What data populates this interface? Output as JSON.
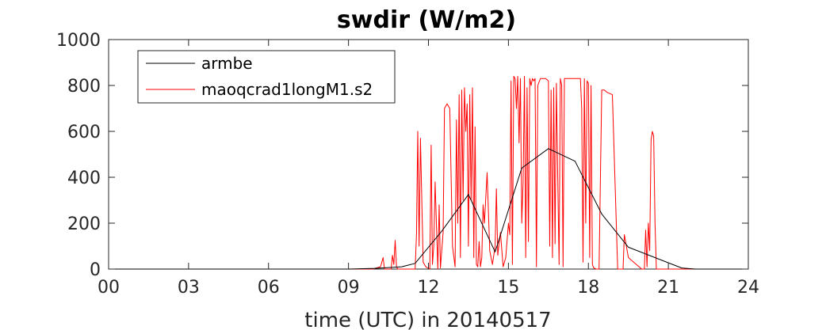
{
  "chart_data": {
    "type": "line",
    "title": "swdir  (W/m2)",
    "xlabel": "time (UTC) in 20140517",
    "ylabel": "",
    "xlim": [
      0,
      24
    ],
    "ylim": [
      0,
      1000
    ],
    "xticks": [
      0,
      3,
      6,
      9,
      12,
      15,
      18,
      21,
      24
    ],
    "xtick_labels": [
      "00",
      "03",
      "06",
      "09",
      "12",
      "15",
      "18",
      "21",
      "24"
    ],
    "yticks": [
      0,
      200,
      400,
      600,
      800,
      1000
    ],
    "ytick_labels": [
      "0",
      "200",
      "400",
      "600",
      "800",
      "1000"
    ],
    "grid": false,
    "legend_position": "top-left",
    "series": [
      {
        "name": "armbe",
        "color": "#000000",
        "x": [
          0,
          1,
          2,
          3,
          4,
          5,
          6,
          7,
          8,
          9,
          10,
          11,
          11.5,
          12.5,
          13.5,
          14.5,
          15.5,
          16.5,
          17.5,
          18.5,
          19.5,
          20.5,
          21.5,
          22,
          23,
          24
        ],
        "y": [
          0,
          0,
          0,
          0,
          0,
          0,
          0,
          0,
          0,
          0,
          3,
          10,
          25,
          165,
          325,
          75,
          440,
          525,
          470,
          240,
          95,
          50,
          5,
          0,
          0,
          0
        ]
      },
      {
        "name": "maoqcrad1longM1.s2",
        "color": "#ff0000",
        "x": [
          0,
          9.9,
          10.2,
          10.3,
          10.35,
          10.6,
          10.65,
          10.7,
          10.75,
          10.8,
          10.85,
          11.5,
          11.55,
          11.6,
          11.65,
          11.7,
          11.75,
          11.8,
          11.9,
          12.05,
          12.1,
          12.15,
          12.2,
          12.25,
          12.35,
          12.4,
          12.45,
          12.55,
          12.6,
          12.7,
          12.8,
          12.9,
          13.0,
          13.05,
          13.1,
          13.15,
          13.2,
          13.25,
          13.3,
          13.35,
          13.4,
          13.45,
          13.5,
          13.55,
          13.6,
          13.65,
          13.7,
          13.75,
          13.8,
          13.85,
          13.9,
          13.95,
          14.0,
          14.05,
          14.1,
          14.2,
          14.3,
          14.4,
          14.5,
          14.55,
          14.6,
          14.7,
          14.8,
          14.9,
          15.0,
          15.05,
          15.1,
          15.15,
          15.2,
          15.25,
          15.3,
          15.35,
          15.4,
          15.45,
          15.5,
          15.55,
          15.6,
          15.65,
          15.7,
          15.75,
          15.8,
          15.85,
          15.9,
          15.95,
          16.0,
          16.05,
          16.1,
          16.2,
          16.3,
          16.4,
          16.5,
          16.55,
          16.6,
          16.65,
          16.7,
          16.75,
          16.8,
          16.85,
          16.9,
          16.95,
          17.0,
          17.05,
          17.1,
          17.2,
          17.3,
          17.5,
          17.7,
          17.75,
          17.8,
          17.85,
          17.9,
          17.95,
          18.0,
          18.05,
          18.1,
          18.15,
          18.2,
          18.3,
          18.4,
          18.5,
          18.6,
          18.7,
          18.9,
          19.1,
          19.25,
          19.3,
          19.35,
          19.5,
          20.0,
          20.05,
          20.1,
          20.15,
          20.2,
          20.25,
          20.3,
          20.35,
          20.4,
          20.45,
          20.5,
          20.55,
          20.6,
          20.7,
          21,
          22,
          23,
          24
        ],
        "y": [
          0,
          0,
          10,
          50,
          0,
          0,
          60,
          20,
          125,
          10,
          0,
          0,
          150,
          600,
          100,
          570,
          300,
          30,
          10,
          0,
          540,
          20,
          100,
          380,
          0,
          280,
          5,
          160,
          700,
          720,
          700,
          100,
          10,
          650,
          200,
          760,
          50,
          780,
          300,
          790,
          600,
          720,
          100,
          760,
          300,
          790,
          50,
          620,
          20,
          10,
          120,
          10,
          50,
          280,
          200,
          420,
          80,
          20,
          100,
          350,
          60,
          160,
          10,
          50,
          200,
          150,
          820,
          20,
          840,
          830,
          700,
          840,
          550,
          830,
          200,
          380,
          840,
          50,
          790,
          120,
          830,
          800,
          830,
          820,
          830,
          10,
          800,
          830,
          830,
          830,
          820,
          100,
          780,
          50,
          790,
          110,
          810,
          400,
          20,
          830,
          800,
          10,
          830,
          830,
          830,
          830,
          830,
          700,
          30,
          830,
          200,
          820,
          810,
          50,
          800,
          20,
          5,
          0,
          0,
          780,
          780,
          770,
          760,
          0,
          0,
          0,
          150,
          50,
          0,
          0,
          0,
          170,
          10,
          200,
          80,
          560,
          600,
          580,
          200,
          0,
          0,
          0,
          0,
          0,
          0,
          0
        ]
      }
    ]
  }
}
